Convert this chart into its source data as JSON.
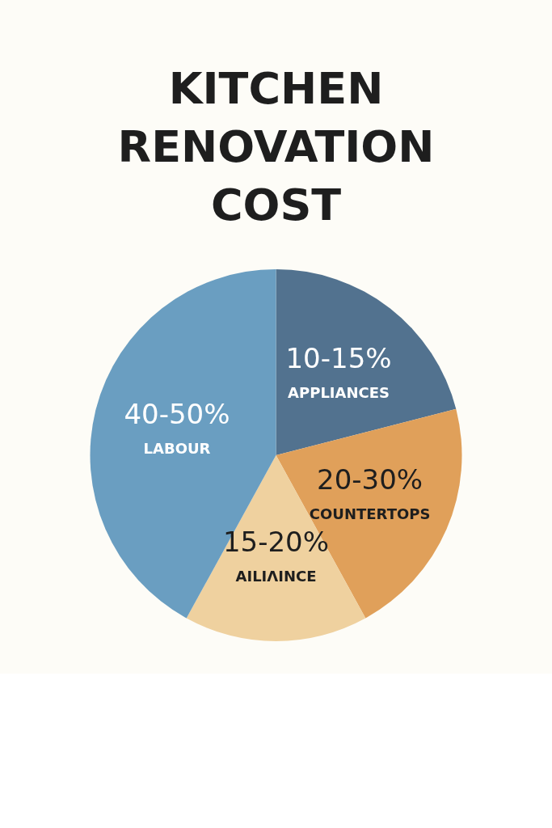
{
  "chart_data": {
    "type": "pie",
    "title": "KITCHEN RENOVATION COST",
    "categories": [
      "10-15%\nAPPLIANCES",
      "20-30%\nCOUNTERTOPS",
      "15-20%\nAILIΛINCE",
      "40-50%\nLABOUR"
    ],
    "values": [
      21,
      21,
      16,
      42
    ],
    "colors": [
      "#52728f",
      "#e0a05a",
      "#efd19f",
      "#6a9ec1"
    ]
  }
}
